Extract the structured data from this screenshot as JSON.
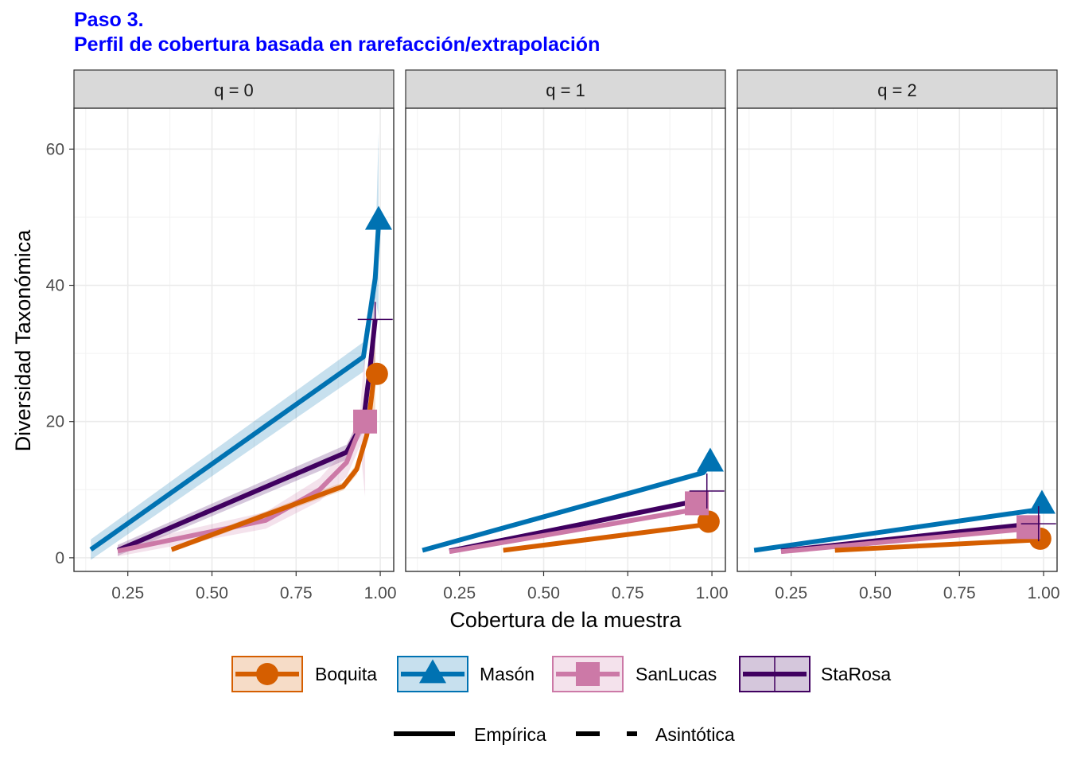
{
  "title": {
    "line1": "Paso 3.",
    "line2": "Perfil de cobertura basada en rarefacción/extrapolación"
  },
  "chart_data": {
    "type": "line",
    "xlabel": "Cobertura de la muestra",
    "ylabel": "Diversidad Taxonómica",
    "xlim": [
      0.09,
      1.04
    ],
    "ylim": [
      -2,
      66
    ],
    "x_ticks": [
      {
        "value": 0.25,
        "label": "0.25"
      },
      {
        "value": 0.5,
        "label": "0.50"
      },
      {
        "value": 0.75,
        "label": "0.75"
      },
      {
        "value": 1.0,
        "label": "1.00"
      }
    ],
    "y_ticks": [
      {
        "value": 0,
        "label": "0"
      },
      {
        "value": 20,
        "label": "20"
      },
      {
        "value": 40,
        "label": "40"
      },
      {
        "value": 60,
        "label": "60"
      }
    ],
    "grid": true,
    "legend_position": "bottom",
    "method_legend": [
      {
        "name": "Empírica",
        "style": "solid"
      },
      {
        "name": "Asintótica",
        "style": "dashed"
      }
    ],
    "series": [
      {
        "name": "Boquita",
        "color": "#D55E00",
        "marker": "circle"
      },
      {
        "name": "Masón",
        "color": "#0072B2",
        "marker": "triangle"
      },
      {
        "name": "SanLucas",
        "color": "#CC79A7",
        "marker": "square"
      },
      {
        "name": "StaRosa",
        "color": "#400060",
        "marker": "plus"
      }
    ],
    "facets": [
      {
        "label": "q = 0",
        "lines": [
          {
            "series": "Masón",
            "points": [
              [
                0.14,
                1.2
              ],
              [
                0.95,
                29.5
              ],
              [
                0.985,
                41
              ],
              [
                0.995,
                49
              ]
            ],
            "band": [
              1.5,
              3.5
            ],
            "tail_spread": 10
          },
          {
            "series": "StaRosa",
            "points": [
              [
                0.22,
                1.1
              ],
              [
                0.9,
                15.5
              ],
              [
                0.95,
                20
              ],
              [
                0.97,
                28
              ],
              [
                0.985,
                35
              ]
            ],
            "band": [
              0.8,
              2
            ],
            "tail_spread": 5
          },
          {
            "series": "SanLucas",
            "points": [
              [
                0.22,
                1.0
              ],
              [
                0.66,
                5.5
              ],
              [
                0.82,
                10
              ],
              [
                0.9,
                14
              ],
              [
                0.94,
                19
              ],
              [
                0.955,
                20
              ]
            ],
            "band": [
              0.8,
              3
            ],
            "tail_spread": 8
          },
          {
            "series": "Boquita",
            "points": [
              [
                0.38,
                1.2
              ],
              [
                0.89,
                10.5
              ],
              [
                0.93,
                13
              ],
              [
                0.96,
                18
              ],
              [
                0.985,
                28
              ]
            ],
            "band": [
              0.4,
              1.2
            ],
            "tail_spread": 6
          }
        ],
        "endpoints": [
          {
            "series": "Boquita",
            "x": 0.99,
            "y": 27
          },
          {
            "series": "Masón",
            "x": 0.995,
            "y": 49.5
          },
          {
            "series": "SanLucas",
            "x": 0.955,
            "y": 20
          },
          {
            "series": "StaRosa",
            "x": 0.985,
            "y": 35
          }
        ]
      },
      {
        "label": "q = 1",
        "lines": [
          {
            "series": "Masón",
            "points": [
              [
                0.14,
                1.1
              ],
              [
                0.975,
                12.5
              ],
              [
                0.995,
                14
              ]
            ],
            "band": [
              0.3,
              0.5
            ],
            "tail_spread": 0
          },
          {
            "series": "StaRosa",
            "points": [
              [
                0.22,
                1.0
              ],
              [
                0.97,
                8.5
              ],
              [
                0.985,
                9.5
              ]
            ],
            "band": [
              0.3,
              0.5
            ],
            "tail_spread": 0
          },
          {
            "series": "SanLucas",
            "points": [
              [
                0.22,
                0.9
              ],
              [
                0.94,
                7.0
              ],
              [
                0.955,
                7.8
              ]
            ],
            "band": [
              0.3,
              0.5
            ],
            "tail_spread": 0
          },
          {
            "series": "Boquita",
            "points": [
              [
                0.38,
                1.1
              ],
              [
                0.97,
                4.8
              ],
              [
                0.99,
                5.3
              ]
            ],
            "band": [
              0.2,
              0.3
            ],
            "tail_spread": 0
          }
        ],
        "endpoints": [
          {
            "series": "Boquita",
            "x": 0.99,
            "y": 5.3
          },
          {
            "series": "Masón",
            "x": 0.995,
            "y": 14
          },
          {
            "series": "SanLucas",
            "x": 0.955,
            "y": 8
          },
          {
            "series": "StaRosa",
            "x": 0.985,
            "y": 9.8
          }
        ]
      },
      {
        "label": "q = 2",
        "lines": [
          {
            "series": "Masón",
            "points": [
              [
                0.14,
                1.1
              ],
              [
                0.975,
                7.0
              ],
              [
                0.995,
                7.5
              ]
            ],
            "band": [
              0.2,
              0.3
            ],
            "tail_spread": 0
          },
          {
            "series": "StaRosa",
            "points": [
              [
                0.22,
                1.0
              ],
              [
                0.97,
                5.0
              ],
              [
                0.985,
                5.2
              ]
            ],
            "band": [
              0.2,
              0.3
            ],
            "tail_spread": 0
          },
          {
            "series": "SanLucas",
            "points": [
              [
                0.22,
                0.9
              ],
              [
                0.94,
                4.2
              ],
              [
                0.955,
                4.5
              ]
            ],
            "band": [
              0.2,
              0.3
            ],
            "tail_spread": 0
          },
          {
            "series": "Boquita",
            "points": [
              [
                0.38,
                1.1
              ],
              [
                0.97,
                2.6
              ],
              [
                0.99,
                2.8
              ]
            ],
            "band": [
              0.1,
              0.2
            ],
            "tail_spread": 0
          }
        ],
        "endpoints": [
          {
            "series": "Boquita",
            "x": 0.99,
            "y": 2.8
          },
          {
            "series": "Masón",
            "x": 0.995,
            "y": 7.8
          },
          {
            "series": "SanLucas",
            "x": 0.955,
            "y": 4.5
          },
          {
            "series": "StaRosa",
            "x": 0.985,
            "y": 5.0
          }
        ]
      }
    ]
  }
}
